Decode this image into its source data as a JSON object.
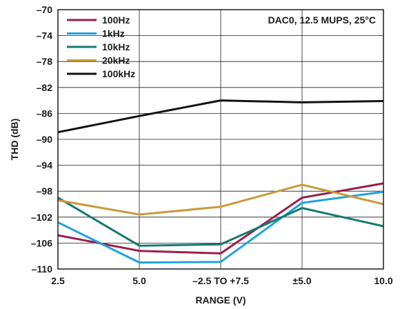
{
  "chart_data": {
    "type": "line",
    "title": "",
    "annotation": "DAC0, 12.5 MUPS, 25°C",
    "xlabel": "RANGE (V)",
    "ylabel": "THD (dB)",
    "categories": [
      "2.5",
      "5.0",
      "–2.5 TO +7.5",
      "±5.0",
      "10.0"
    ],
    "ylim": [
      -110,
      -70
    ],
    "yticks": [
      "–70",
      "–74",
      "–78",
      "–82",
      "–86",
      "–90",
      "–94",
      "–98",
      "–102",
      "–106",
      "–110"
    ],
    "ytick_values": [
      -70,
      -74,
      -78,
      -82,
      -86,
      -90,
      -94,
      -98,
      -102,
      -106,
      -110
    ],
    "grid": "vertical",
    "legend_position": "top-left",
    "series": [
      {
        "name": "100Hz",
        "color": "#9b1d4a",
        "values": [
          -104.8,
          -107.2,
          -107.6,
          -99.0,
          -96.8
        ]
      },
      {
        "name": "1kHz",
        "color": "#1fa3dc",
        "values": [
          -102.8,
          -109.0,
          -108.9,
          -99.8,
          -98.1
        ]
      },
      {
        "name": "10kHz",
        "color": "#137a6c",
        "values": [
          -99.0,
          -106.4,
          -106.2,
          -100.6,
          -103.4
        ]
      },
      {
        "name": "20kHz",
        "color": "#c79a3a",
        "values": [
          -99.4,
          -101.6,
          -100.4,
          -97.0,
          -100.0
        ]
      },
      {
        "name": "100kHz",
        "color": "#111111",
        "values": [
          -88.9,
          -86.4,
          -84.0,
          -84.3,
          -84.1
        ]
      }
    ]
  }
}
